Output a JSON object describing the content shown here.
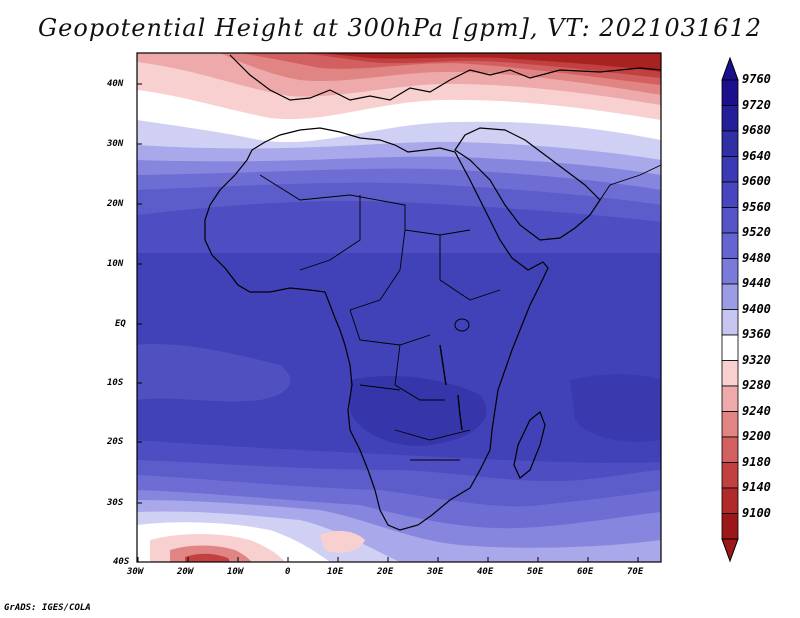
{
  "title": "Geopotential Height at 300hPa [gpm], VT: 2021031612",
  "footer": "GrADS: IGES/COLA",
  "lat_labels": [
    "40N",
    "30N",
    "20N",
    "10N",
    "EQ",
    "10S",
    "20S",
    "30S",
    "40S"
  ],
  "lon_labels": [
    "30W",
    "20W",
    "10W",
    "0",
    "10E",
    "20E",
    "30E",
    "40E",
    "50E",
    "60E",
    "70E"
  ],
  "colorbar": {
    "levels": [
      "9760",
      "9720",
      "9680",
      "9640",
      "9600",
      "9560",
      "9520",
      "9480",
      "9440",
      "9400",
      "9360",
      "9320",
      "9280",
      "9240",
      "9200",
      "9180",
      "9140",
      "9100"
    ],
    "colors": [
      "#1b0f8c",
      "#241e98",
      "#2f2fa6",
      "#3a3ab4",
      "#4646be",
      "#5555c8",
      "#6565d2",
      "#7a7ada",
      "#9c9ce6",
      "#c6c6f0",
      "#ffffff",
      "#f8d0d0",
      "#eeaaaa",
      "#e08484",
      "#d36060",
      "#c24040",
      "#b02a2a",
      "#9c1818"
    ]
  },
  "chart_data": {
    "type": "heatmap",
    "title": "Geopotential Height at 300hPa [gpm], VT: 2021031612",
    "variable": "Geopotential Height",
    "level": "300hPa",
    "units": "gpm",
    "valid_time": "2021031612",
    "lon_range": [
      -30,
      75
    ],
    "lat_range": [
      -40,
      45
    ],
    "colorbar_levels": [
      9100,
      9140,
      9180,
      9200,
      9240,
      9280,
      9320,
      9360,
      9400,
      9440,
      9480,
      9520,
      9560,
      9600,
      9640,
      9680,
      9720,
      9760
    ]
  }
}
